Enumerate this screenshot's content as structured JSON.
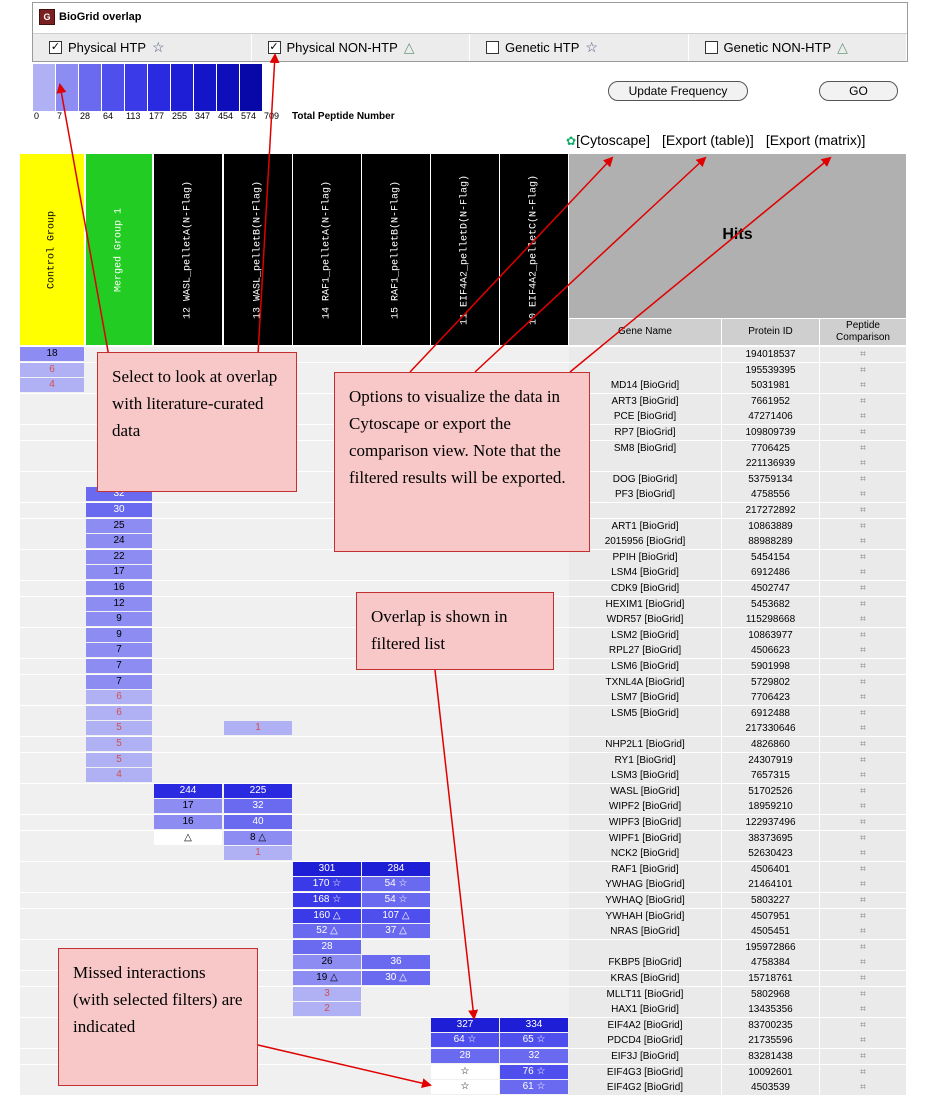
{
  "panel": {
    "title": "BioGrid overlap",
    "logo": "G",
    "options": [
      {
        "label": "Physical HTP",
        "checked": true,
        "symbol": "☆"
      },
      {
        "label": "Physical NON-HTP",
        "checked": true,
        "symbol": "△"
      },
      {
        "label": "Genetic HTP",
        "checked": false,
        "symbol": "☆"
      },
      {
        "label": "Genetic NON-HTP",
        "checked": false,
        "symbol": "△"
      }
    ]
  },
  "legend": {
    "values": [
      "0",
      "7",
      "28",
      "64",
      "113",
      "177",
      "255",
      "347",
      "454",
      "574",
      "709"
    ],
    "colors": [
      "#b0b0f4",
      "#8c8cf2",
      "#6a6af0",
      "#4f4fee",
      "#3a3ae8",
      "#2a2ae0",
      "#1e1ed6",
      "#1515c8",
      "#0e0eba",
      "#0808a8"
    ],
    "label": "Total Peptide Number"
  },
  "buttons": {
    "update": "Update Frequency",
    "go": "GO"
  },
  "links": {
    "cytoscape": "[Cytoscape]",
    "export_table": "[Export (table)]",
    "export_matrix": "[Export (matrix)]"
  },
  "columns": {
    "control": "Control Group",
    "merged": "Merged Group 1",
    "samples": [
      "12 WASL_pelletA(N-Flag)",
      "13 WASL_pelletB(N-Flag)",
      "14 RAF1_pelletA(N-Flag)",
      "15 RAF1_pelletB(N-Flag)",
      "11 EIF4A2_pelletD(N-Flag)",
      "10 EIF4A2_pelletC(N-Flag)"
    ],
    "hits": "Hits",
    "gene_name": "Gene Name",
    "protein_id": "Protein ID",
    "peptide_comparison": "Peptide Comparison"
  },
  "rows": [
    {
      "control": "18",
      "merged": "",
      "s": [
        "",
        "",
        "",
        "",
        "",
        ""
      ],
      "gene": "",
      "pid": "194018537"
    },
    {
      "control": "6",
      "merged": "",
      "s": [
        "",
        "",
        "",
        "",
        "",
        ""
      ],
      "gene": "",
      "pid": "195539395"
    },
    {
      "control": "4",
      "merged": "",
      "s": [
        "",
        "",
        "",
        "",
        "",
        ""
      ],
      "gene": "MD14 [BioGrid]",
      "pid": "5031981"
    },
    {
      "control": "",
      "merged": "",
      "s": [
        "",
        "",
        "",
        "",
        "",
        ""
      ],
      "gene": "ART3 [BioGrid]",
      "pid": "7661952"
    },
    {
      "control": "",
      "merged": "",
      "s": [
        "",
        "",
        "",
        "",
        "",
        ""
      ],
      "gene": "PCE [BioGrid]",
      "pid": "47271406"
    },
    {
      "control": "",
      "merged": "",
      "s": [
        "",
        "",
        "",
        "",
        "",
        ""
      ],
      "gene": "RP7 [BioGrid]",
      "pid": "109809739"
    },
    {
      "control": "",
      "merged": "",
      "s": [
        "",
        "",
        "",
        "",
        "",
        ""
      ],
      "gene": "SM8 [BioGrid]",
      "pid": "7706425"
    },
    {
      "control": "",
      "merged": "",
      "s": [
        "",
        "",
        "",
        "",
        "",
        ""
      ],
      "gene": "",
      "pid": "221136939"
    },
    {
      "control": "",
      "merged": "",
      "s": [
        "",
        "",
        "",
        "",
        "",
        ""
      ],
      "gene": "DOG [BioGrid]",
      "pid": "53759134"
    },
    {
      "control": "",
      "merged": "32",
      "s": [
        "",
        "",
        "",
        "",
        "",
        ""
      ],
      "gene": "PF3 [BioGrid]",
      "pid": "4758556"
    },
    {
      "control": "",
      "merged": "30",
      "s": [
        "",
        "",
        "",
        "",
        "",
        ""
      ],
      "gene": "",
      "pid": "217272892"
    },
    {
      "control": "",
      "merged": "25",
      "s": [
        "",
        "",
        "",
        "",
        "",
        ""
      ],
      "gene": "ART1 [BioGrid]",
      "pid": "10863889"
    },
    {
      "control": "",
      "merged": "24",
      "s": [
        "",
        "",
        "",
        "",
        "",
        ""
      ],
      "gene": "2015956 [BioGrid]",
      "pid": "88988289"
    },
    {
      "control": "",
      "merged": "22",
      "s": [
        "",
        "",
        "",
        "",
        "",
        ""
      ],
      "gene": "PPIH [BioGrid]",
      "pid": "5454154"
    },
    {
      "control": "",
      "merged": "17",
      "s": [
        "",
        "",
        "",
        "",
        "",
        ""
      ],
      "gene": "LSM4 [BioGrid]",
      "pid": "6912486"
    },
    {
      "control": "",
      "merged": "16",
      "s": [
        "",
        "",
        "",
        "",
        "",
        ""
      ],
      "gene": "CDK9 [BioGrid]",
      "pid": "4502747"
    },
    {
      "control": "",
      "merged": "12",
      "s": [
        "",
        "",
        "",
        "",
        "",
        ""
      ],
      "gene": "HEXIM1 [BioGrid]",
      "pid": "5453682"
    },
    {
      "control": "",
      "merged": "9",
      "s": [
        "",
        "",
        "",
        "",
        "",
        ""
      ],
      "gene": "WDR57 [BioGrid]",
      "pid": "115298668"
    },
    {
      "control": "",
      "merged": "9",
      "s": [
        "",
        "",
        "",
        "",
        "",
        ""
      ],
      "gene": "LSM2 [BioGrid]",
      "pid": "10863977"
    },
    {
      "control": "",
      "merged": "7",
      "s": [
        "",
        "",
        "",
        "",
        "",
        ""
      ],
      "gene": "RPL27 [BioGrid]",
      "pid": "4506623"
    },
    {
      "control": "",
      "merged": "7",
      "s": [
        "",
        "",
        "",
        "",
        "",
        ""
      ],
      "gene": "LSM6 [BioGrid]",
      "pid": "5901998"
    },
    {
      "control": "",
      "merged": "7",
      "s": [
        "",
        "",
        "",
        "",
        "",
        ""
      ],
      "gene": "TXNL4A [BioGrid]",
      "pid": "5729802"
    },
    {
      "control": "",
      "merged": "6",
      "s": [
        "",
        "",
        "",
        "",
        "",
        ""
      ],
      "gene": "LSM7 [BioGrid]",
      "pid": "7706423"
    },
    {
      "control": "",
      "merged": "6",
      "s": [
        "",
        "",
        "",
        "",
        "",
        ""
      ],
      "gene": "LSM5 [BioGrid]",
      "pid": "6912488"
    },
    {
      "control": "",
      "merged": "5",
      "s": [
        "",
        "1",
        "",
        "",
        "",
        ""
      ],
      "gene": "",
      "pid": "217330646"
    },
    {
      "control": "",
      "merged": "5",
      "s": [
        "",
        "",
        "",
        "",
        "",
        ""
      ],
      "gene": "NHP2L1 [BioGrid]",
      "pid": "4826860"
    },
    {
      "control": "",
      "merged": "5",
      "s": [
        "",
        "",
        "",
        "",
        "",
        ""
      ],
      "gene": "RY1 [BioGrid]",
      "pid": "24307919"
    },
    {
      "control": "",
      "merged": "4",
      "s": [
        "",
        "",
        "",
        "",
        "",
        ""
      ],
      "gene": "LSM3 [BioGrid]",
      "pid": "7657315"
    },
    {
      "control": "",
      "merged": "",
      "s": [
        "244",
        "225",
        "",
        "",
        "",
        ""
      ],
      "gene": "WASL [BioGrid]",
      "pid": "51702526"
    },
    {
      "control": "",
      "merged": "",
      "s": [
        "17",
        "32",
        "",
        "",
        "",
        ""
      ],
      "gene": "WIPF2 [BioGrid]",
      "pid": "18959210"
    },
    {
      "control": "",
      "merged": "",
      "s": [
        "16",
        "40",
        "",
        "",
        "",
        ""
      ],
      "gene": "WIPF3 [BioGrid]",
      "pid": "122937496"
    },
    {
      "control": "",
      "merged": "",
      "s": [
        "△",
        "8 △",
        "",
        "",
        "",
        ""
      ],
      "gene": "WIPF1 [BioGrid]",
      "pid": "38373695"
    },
    {
      "control": "",
      "merged": "",
      "s": [
        "",
        "1",
        "",
        "",
        "",
        ""
      ],
      "gene": "NCK2 [BioGrid]",
      "pid": "52630423"
    },
    {
      "control": "",
      "merged": "",
      "s": [
        "",
        "",
        "301",
        "284",
        "",
        ""
      ],
      "gene": "RAF1 [BioGrid]",
      "pid": "4506401"
    },
    {
      "control": "",
      "merged": "",
      "s": [
        "",
        "",
        "170 ☆",
        "54 ☆",
        "",
        ""
      ],
      "gene": "YWHAG [BioGrid]",
      "pid": "21464101"
    },
    {
      "control": "",
      "merged": "",
      "s": [
        "",
        "",
        "168 ☆",
        "54 ☆",
        "",
        ""
      ],
      "gene": "YWHAQ [BioGrid]",
      "pid": "5803227"
    },
    {
      "control": "",
      "merged": "",
      "s": [
        "",
        "",
        "160 △",
        "107 △",
        "",
        ""
      ],
      "gene": "YWHAH [BioGrid]",
      "pid": "4507951"
    },
    {
      "control": "",
      "merged": "",
      "s": [
        "",
        "",
        "52 △",
        "37 △",
        "",
        ""
      ],
      "gene": "NRAS [BioGrid]",
      "pid": "4505451"
    },
    {
      "control": "",
      "merged": "",
      "s": [
        "",
        "",
        "28",
        "",
        "",
        ""
      ],
      "gene": "",
      "pid": "195972866"
    },
    {
      "control": "",
      "merged": "",
      "s": [
        "",
        "",
        "26",
        "36",
        "",
        ""
      ],
      "gene": "FKBP5 [BioGrid]",
      "pid": "4758384"
    },
    {
      "control": "",
      "merged": "",
      "s": [
        "",
        "",
        "19 △",
        "30 △",
        "",
        ""
      ],
      "gene": "KRAS [BioGrid]",
      "pid": "15718761"
    },
    {
      "control": "",
      "merged": "",
      "s": [
        "",
        "",
        "3",
        "",
        "",
        ""
      ],
      "gene": "MLLT11 [BioGrid]",
      "pid": "5802968"
    },
    {
      "control": "",
      "merged": "",
      "s": [
        "",
        "",
        "2",
        "",
        "",
        ""
      ],
      "gene": "HAX1 [BioGrid]",
      "pid": "13435356"
    },
    {
      "control": "",
      "merged": "",
      "s": [
        "",
        "",
        "",
        "",
        "327",
        "334"
      ],
      "gene": "EIF4A2 [BioGrid]",
      "pid": "83700235"
    },
    {
      "control": "",
      "merged": "",
      "s": [
        "",
        "",
        "",
        "",
        "64 ☆",
        "65 ☆"
      ],
      "gene": "PDCD4 [BioGrid]",
      "pid": "21735596"
    },
    {
      "control": "",
      "merged": "",
      "s": [
        "",
        "",
        "",
        "",
        "28",
        "32"
      ],
      "gene": "EIF3J [BioGrid]",
      "pid": "83281438"
    },
    {
      "control": "",
      "merged": "",
      "s": [
        "",
        "",
        "",
        "",
        "☆",
        "76 ☆"
      ],
      "gene": "EIF4G3 [BioGrid]",
      "pid": "10092601"
    },
    {
      "control": "",
      "merged": "",
      "s": [
        "",
        "",
        "",
        "",
        "☆",
        "61 ☆"
      ],
      "gene": "EIF4G2 [BioGrid]",
      "pid": "4503539"
    }
  ],
  "callouts": {
    "select": "Select to look at overlap with literature-curated data",
    "options": "Options to visualize the data in Cytoscape or export the comparison view. Note that the filtered results will be exported.",
    "overlap": "Overlap is shown in filtered list",
    "missed": "Missed interactions (with selected filters) are indicated"
  },
  "colors": {
    "control_bg": "#ffff00",
    "merged_bg": "#22cc22",
    "sample_bg": "#000000",
    "hits_bg": "#b0b0b0",
    "arrow": "#e00000"
  }
}
